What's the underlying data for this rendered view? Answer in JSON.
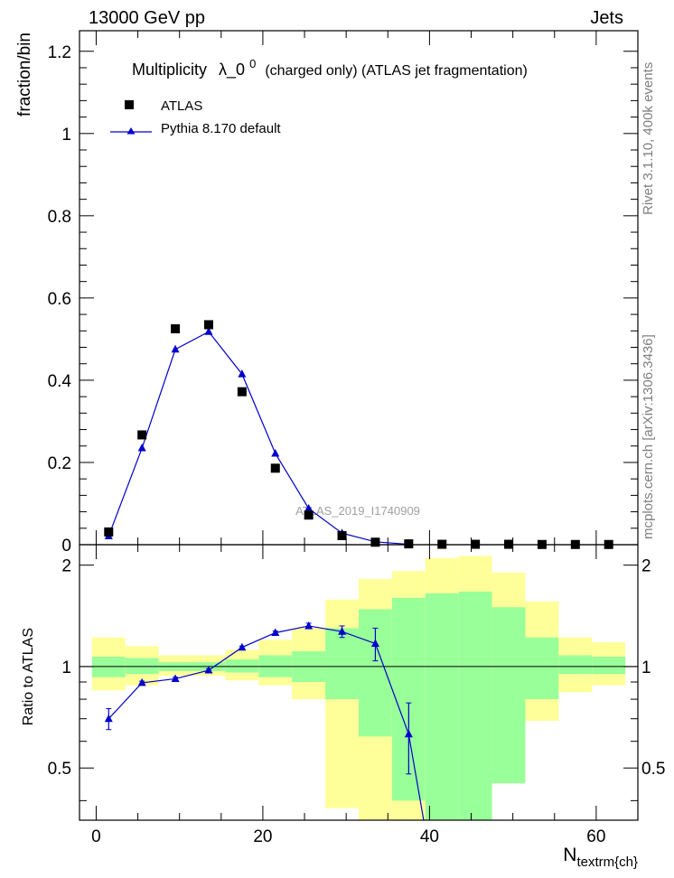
{
  "header": {
    "left": "13000 GeV pp",
    "right": "Jets"
  },
  "side_labels": {
    "rivet": "Rivet 3.1.10,  400k events",
    "mcplots": "mcplots.cern.ch [arXiv:1306.3436]"
  },
  "watermark": "ATLAS_2019_I1740909",
  "colors": {
    "mc": "#0000cc",
    "data": "#000000",
    "band_inner": "#99ff99",
    "band_outer": "#ffff99"
  },
  "chart_data": [
    {
      "type": "scatter",
      "panel": "main",
      "title_prefix": "Multiplicity",
      "title_symbol": "λ_0",
      "title_superscript": "0",
      "title_suffix": "(charged only) (ATLAS jet fragmentation)",
      "ylabel": "fraction/bin",
      "xlim": [
        -2,
        65
      ],
      "ylim": [
        0,
        1.25
      ],
      "yticks": [
        0,
        0.2,
        0.4,
        0.6,
        0.8,
        1,
        1.2
      ],
      "yticklabels": [
        "0",
        "0.2",
        "0.4",
        "0.6",
        "0.8",
        "1",
        "1.2"
      ],
      "legend_position": "top-left",
      "series": [
        {
          "name": "ATLAS",
          "style": "markers",
          "x": [
            1.5,
            5.5,
            9.5,
            13.5,
            17.5,
            21.5,
            25.5,
            29.5,
            33.5,
            37.5,
            41.5,
            45.5,
            49.5,
            53.5,
            57.5,
            61.5
          ],
          "y": [
            0.031,
            0.267,
            0.525,
            0.535,
            0.372,
            0.186,
            0.072,
            0.022,
            0.006,
            0.002,
            0.001,
            0.001,
            0.001,
            0.0005,
            0.0005,
            0.0005
          ]
        },
        {
          "name": "Pythia 8.170 default",
          "style": "line",
          "x": [
            1.5,
            5.5,
            9.5,
            13.5,
            17.5,
            21.5,
            25.5,
            29.5,
            33.5,
            37.5
          ],
          "y": [
            0.021,
            0.235,
            0.475,
            0.518,
            0.415,
            0.222,
            0.088,
            0.028,
            0.007,
            0.001
          ]
        }
      ]
    },
    {
      "type": "line",
      "panel": "ratio",
      "ylabel": "Ratio to ATLAS",
      "xlabel_main": "N",
      "xlabel_sub": "textrm{ch}",
      "xlim": [
        -2,
        65
      ],
      "ylim": [
        0.35,
        2.3
      ],
      "xticks": [
        0,
        20,
        40,
        60
      ],
      "xticklabels": [
        "0",
        "20",
        "40",
        "60"
      ],
      "yticks": [
        0.5,
        1,
        2
      ],
      "yticklabels": [
        "0.5",
        "1",
        "2"
      ],
      "bin_edges": [
        -0.5,
        3.5,
        7.5,
        11.5,
        15.5,
        19.5,
        23.5,
        27.5,
        31.5,
        35.5,
        39.5,
        43.5,
        47.5,
        51.5,
        55.5,
        59.5,
        63.5
      ],
      "band_inner": [
        [
          0.93,
          1.07
        ],
        [
          0.95,
          1.06
        ],
        [
          0.97,
          1.03
        ],
        [
          0.97,
          1.03
        ],
        [
          0.96,
          1.05
        ],
        [
          0.93,
          1.08
        ],
        [
          0.9,
          1.11
        ],
        [
          0.8,
          1.3
        ],
        [
          0.62,
          1.48
        ],
        [
          0.4,
          1.6
        ],
        [
          0.3,
          1.65
        ],
        [
          0.3,
          1.67
        ],
        [
          0.45,
          1.5
        ],
        [
          0.8,
          1.22
        ],
        [
          0.95,
          1.08
        ],
        [
          0.95,
          1.07
        ]
      ],
      "band_outer": [
        [
          0.85,
          1.22
        ],
        [
          0.88,
          1.15
        ],
        [
          0.94,
          1.08
        ],
        [
          0.94,
          1.08
        ],
        [
          0.91,
          1.12
        ],
        [
          0.88,
          1.2
        ],
        [
          0.8,
          1.3
        ],
        [
          0.38,
          1.58
        ],
        [
          0.3,
          1.82
        ],
        [
          0.3,
          1.92
        ],
        [
          0.3,
          2.1
        ],
        [
          0.3,
          2.13
        ],
        [
          0.52,
          1.9
        ],
        [
          0.69,
          1.56
        ],
        [
          0.84,
          1.22
        ],
        [
          0.88,
          1.18
        ]
      ],
      "series": [
        {
          "name": "Pythia 8.170 default",
          "x": [
            1.5,
            5.5,
            9.5,
            13.5,
            17.5,
            21.5,
            25.5,
            29.5,
            33.5,
            37.5,
            39.3
          ],
          "y": [
            0.7,
            0.895,
            0.92,
            0.975,
            1.14,
            1.26,
            1.32,
            1.27,
            1.17,
            0.63,
            0.35
          ],
          "err": [
            0.05,
            0.01,
            0.01,
            0.01,
            0.01,
            0.015,
            0.025,
            0.05,
            0.13,
            0.15,
            0
          ]
        }
      ]
    }
  ]
}
